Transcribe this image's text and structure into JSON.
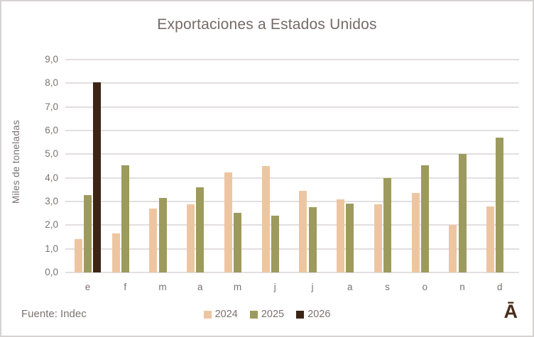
{
  "chart_data": {
    "type": "bar",
    "title": "Exportaciones a Estados Unidos",
    "xlabel": "",
    "ylabel": "Miles de toneladas",
    "source": "Fuente: Indec",
    "logo": "Ā",
    "categories": [
      "e",
      "f",
      "m",
      "a",
      "m",
      "j",
      "j",
      "a",
      "s",
      "o",
      "n",
      "d"
    ],
    "series": [
      {
        "name": "2024",
        "color": "#edc6a1",
        "values": [
          1.4,
          1.64,
          2.7,
          2.87,
          4.23,
          4.5,
          3.45,
          3.1,
          2.87,
          3.35,
          2.0,
          2.8
        ]
      },
      {
        "name": "2025",
        "color": "#9d9a5e",
        "values": [
          3.27,
          4.52,
          3.15,
          3.6,
          2.52,
          2.4,
          2.76,
          2.9,
          4.0,
          4.53,
          5.0,
          5.7
        ]
      },
      {
        "name": "2026",
        "color": "#3d2516",
        "values": [
          8.05,
          null,
          null,
          null,
          null,
          null,
          null,
          null,
          null,
          null,
          null,
          null
        ]
      }
    ],
    "ylim": [
      0,
      9
    ],
    "ytick_labels": [
      "0,0",
      "1,0",
      "2,0",
      "3,0",
      "4,0",
      "5,0",
      "6,0",
      "7,0",
      "8,0",
      "9,0"
    ],
    "grid": true,
    "legend_position": "bottom"
  },
  "colors": {
    "text": "#756a67",
    "tick_text": "#7c7170",
    "gridline": "#e3dedf",
    "frame_border": "#d7d2d2",
    "logo": "#4a2d1b",
    "background": "#ffffff"
  }
}
